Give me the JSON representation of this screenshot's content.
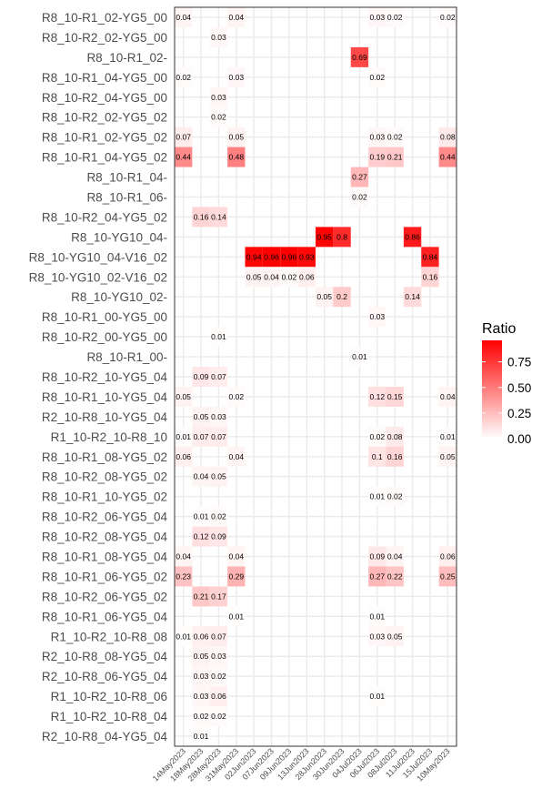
{
  "chart_data": {
    "type": "heatmap",
    "title": "",
    "xlabel": "",
    "ylabel": "",
    "x": [
      "14May2023",
      "18May2023",
      "28May2023",
      "31May2023",
      "02Jun2023",
      "07Jun2023",
      "09Jun2023",
      "13Jun2023",
      "28Jun2023",
      "30Jun2023",
      "04Jul2023",
      "06Jul2023",
      "08Jul2023",
      "11Jul2023",
      "15Jul2023",
      "10May2023"
    ],
    "y": [
      "R8_10-R1_02-YG5_00",
      "R8_10-R2_02-YG5_00",
      "R8_10-R1_02-",
      "R8_10-R1_04-YG5_00",
      "R8_10-R2_04-YG5_00",
      "R8_10-R2_02-YG5_02",
      "R8_10-R1_02-YG5_02",
      "R8_10-R1_04-YG5_02",
      "R8_10-R1_04-",
      "R8_10-R1_06-",
      "R8_10-R2_04-YG5_02",
      "R8_10-YG10_04-",
      "R8_10-YG10_04-V16_02",
      "R8_10-YG10_02-V16_02",
      "R8_10-YG10_02-",
      "R8_10-R1_00-YG5_00",
      "R8_10-R2_00-YG5_00",
      "R8_10-R1_00-",
      "R8_10-R2_10-YG5_04",
      "R8_10-R1_10-YG5_04",
      "R2_10-R8_10-YG5_04",
      "R1_10-R2_10-R8_10",
      "R8_10-R1_08-YG5_02",
      "R8_10-R2_08-YG5_02",
      "R8_10-R1_10-YG5_02",
      "R8_10-R2_06-YG5_04",
      "R8_10-R2_08-YG5_04",
      "R8_10-R1_08-YG5_04",
      "R8_10-R1_06-YG5_02",
      "R8_10-R2_06-YG5_02",
      "R8_10-R1_06-YG5_04",
      "R1_10-R2_10-R8_08",
      "R2_10-R8_08-YG5_04",
      "R2_10-R8_06-YG5_04",
      "R1_10-R2_10-R8_06",
      "R1_10-R2_10-R8_04",
      "R2_10-R8_04-YG5_04"
    ],
    "cells": [
      {
        "row": 0,
        "col": 0,
        "value": 0.04,
        "label": "0.04"
      },
      {
        "row": 0,
        "col": 3,
        "value": 0.04,
        "label": "0.04"
      },
      {
        "row": 0,
        "col": 11,
        "value": 0.03,
        "label": "0.03"
      },
      {
        "row": 0,
        "col": 12,
        "value": 0.02,
        "label": "0.02"
      },
      {
        "row": 0,
        "col": 15,
        "value": 0.02,
        "label": "0.02"
      },
      {
        "row": 1,
        "col": 2,
        "value": 0.03,
        "label": "0.03"
      },
      {
        "row": 2,
        "col": 10,
        "value": 0.69,
        "label": "0.69"
      },
      {
        "row": 3,
        "col": 0,
        "value": 0.02,
        "label": "0.02"
      },
      {
        "row": 3,
        "col": 3,
        "value": 0.03,
        "label": "0.03"
      },
      {
        "row": 3,
        "col": 11,
        "value": 0.02,
        "label": "0.02"
      },
      {
        "row": 4,
        "col": 2,
        "value": 0.03,
        "label": "0.03"
      },
      {
        "row": 5,
        "col": 2,
        "value": 0.02,
        "label": "0.02"
      },
      {
        "row": 6,
        "col": 0,
        "value": 0.07,
        "label": "0.07"
      },
      {
        "row": 6,
        "col": 3,
        "value": 0.05,
        "label": "0.05"
      },
      {
        "row": 6,
        "col": 11,
        "value": 0.03,
        "label": "0.03"
      },
      {
        "row": 6,
        "col": 12,
        "value": 0.02,
        "label": "0.02"
      },
      {
        "row": 6,
        "col": 15,
        "value": 0.08,
        "label": "0.08"
      },
      {
        "row": 7,
        "col": 0,
        "value": 0.44,
        "label": "0.44"
      },
      {
        "row": 7,
        "col": 3,
        "value": 0.48,
        "label": "0.48"
      },
      {
        "row": 7,
        "col": 11,
        "value": 0.19,
        "label": "0.19"
      },
      {
        "row": 7,
        "col": 12,
        "value": 0.21,
        "label": "0.21"
      },
      {
        "row": 7,
        "col": 15,
        "value": 0.44,
        "label": "0.44"
      },
      {
        "row": 8,
        "col": 10,
        "value": 0.27,
        "label": "0.27"
      },
      {
        "row": 9,
        "col": 10,
        "value": 0.02,
        "label": "0.02"
      },
      {
        "row": 10,
        "col": 1,
        "value": 0.16,
        "label": "0.16"
      },
      {
        "row": 10,
        "col": 2,
        "value": 0.14,
        "label": "0.14"
      },
      {
        "row": 11,
        "col": 8,
        "value": 0.95,
        "label": "0.95"
      },
      {
        "row": 11,
        "col": 9,
        "value": 0.8,
        "label": "0.8"
      },
      {
        "row": 11,
        "col": 13,
        "value": 0.86,
        "label": "0.86"
      },
      {
        "row": 12,
        "col": 4,
        "value": 0.94,
        "label": "0.94"
      },
      {
        "row": 12,
        "col": 5,
        "value": 0.96,
        "label": "0.96"
      },
      {
        "row": 12,
        "col": 6,
        "value": 0.96,
        "label": "0.96"
      },
      {
        "row": 12,
        "col": 7,
        "value": 0.93,
        "label": "0.93"
      },
      {
        "row": 12,
        "col": 14,
        "value": 0.84,
        "label": "0.84"
      },
      {
        "row": 13,
        "col": 4,
        "value": 0.05,
        "label": "0.05"
      },
      {
        "row": 13,
        "col": 5,
        "value": 0.04,
        "label": "0.04"
      },
      {
        "row": 13,
        "col": 6,
        "value": 0.02,
        "label": "0.02"
      },
      {
        "row": 13,
        "col": 7,
        "value": 0.06,
        "label": "0.06"
      },
      {
        "row": 13,
        "col": 14,
        "value": 0.16,
        "label": "0.16"
      },
      {
        "row": 14,
        "col": 8,
        "value": 0.05,
        "label": "0.05"
      },
      {
        "row": 14,
        "col": 9,
        "value": 0.2,
        "label": "0.2"
      },
      {
        "row": 14,
        "col": 13,
        "value": 0.14,
        "label": "0.14"
      },
      {
        "row": 15,
        "col": 11,
        "value": 0.03,
        "label": "0.03"
      },
      {
        "row": 16,
        "col": 2,
        "value": 0.01,
        "label": "0.01"
      },
      {
        "row": 17,
        "col": 10,
        "value": 0.01,
        "label": "0.01"
      },
      {
        "row": 18,
        "col": 1,
        "value": 0.09,
        "label": "0.09"
      },
      {
        "row": 18,
        "col": 2,
        "value": 0.07,
        "label": "0.07"
      },
      {
        "row": 19,
        "col": 0,
        "value": 0.05,
        "label": "0.05"
      },
      {
        "row": 19,
        "col": 3,
        "value": 0.02,
        "label": "0.02"
      },
      {
        "row": 19,
        "col": 11,
        "value": 0.12,
        "label": "0.12"
      },
      {
        "row": 19,
        "col": 12,
        "value": 0.15,
        "label": "0.15"
      },
      {
        "row": 19,
        "col": 15,
        "value": 0.04,
        "label": "0.04"
      },
      {
        "row": 20,
        "col": 1,
        "value": 0.05,
        "label": "0.05"
      },
      {
        "row": 20,
        "col": 2,
        "value": 0.03,
        "label": "0.03"
      },
      {
        "row": 21,
        "col": 0,
        "value": 0.01,
        "label": "0.01"
      },
      {
        "row": 21,
        "col": 1,
        "value": 0.07,
        "label": "0.07"
      },
      {
        "row": 21,
        "col": 2,
        "value": 0.07,
        "label": "0.07"
      },
      {
        "row": 21,
        "col": 11,
        "value": 0.02,
        "label": "0.02"
      },
      {
        "row": 21,
        "col": 12,
        "value": 0.08,
        "label": "0.08"
      },
      {
        "row": 21,
        "col": 15,
        "value": 0.01,
        "label": "0.01"
      },
      {
        "row": 22,
        "col": 0,
        "value": 0.06,
        "label": "0.06"
      },
      {
        "row": 22,
        "col": 3,
        "value": 0.04,
        "label": "0.04"
      },
      {
        "row": 22,
        "col": 11,
        "value": 0.1,
        "label": "0.1"
      },
      {
        "row": 22,
        "col": 12,
        "value": 0.16,
        "label": "0.16"
      },
      {
        "row": 22,
        "col": 15,
        "value": 0.05,
        "label": "0.05"
      },
      {
        "row": 23,
        "col": 1,
        "value": 0.04,
        "label": "0.04"
      },
      {
        "row": 23,
        "col": 2,
        "value": 0.05,
        "label": "0.05"
      },
      {
        "row": 24,
        "col": 11,
        "value": 0.01,
        "label": "0.01"
      },
      {
        "row": 24,
        "col": 12,
        "value": 0.02,
        "label": "0.02"
      },
      {
        "row": 25,
        "col": 1,
        "value": 0.01,
        "label": "0.01"
      },
      {
        "row": 25,
        "col": 2,
        "value": 0.02,
        "label": "0.02"
      },
      {
        "row": 26,
        "col": 1,
        "value": 0.12,
        "label": "0.12"
      },
      {
        "row": 26,
        "col": 2,
        "value": 0.09,
        "label": "0.09"
      },
      {
        "row": 27,
        "col": 0,
        "value": 0.04,
        "label": "0.04"
      },
      {
        "row": 27,
        "col": 3,
        "value": 0.04,
        "label": "0.04"
      },
      {
        "row": 27,
        "col": 11,
        "value": 0.09,
        "label": "0.09"
      },
      {
        "row": 27,
        "col": 12,
        "value": 0.04,
        "label": "0.04"
      },
      {
        "row": 27,
        "col": 15,
        "value": 0.06,
        "label": "0.06"
      },
      {
        "row": 28,
        "col": 0,
        "value": 0.23,
        "label": "0.23"
      },
      {
        "row": 28,
        "col": 3,
        "value": 0.29,
        "label": "0.29"
      },
      {
        "row": 28,
        "col": 11,
        "value": 0.27,
        "label": "0.27"
      },
      {
        "row": 28,
        "col": 12,
        "value": 0.22,
        "label": "0.22"
      },
      {
        "row": 28,
        "col": 15,
        "value": 0.25,
        "label": "0.25"
      },
      {
        "row": 29,
        "col": 1,
        "value": 0.21,
        "label": "0.21"
      },
      {
        "row": 29,
        "col": 2,
        "value": 0.17,
        "label": "0.17"
      },
      {
        "row": 30,
        "col": 3,
        "value": 0.01,
        "label": "0.01"
      },
      {
        "row": 30,
        "col": 11,
        "value": 0.01,
        "label": "0.01"
      },
      {
        "row": 31,
        "col": 0,
        "value": 0.01,
        "label": "0.01"
      },
      {
        "row": 31,
        "col": 1,
        "value": 0.06,
        "label": "0.06"
      },
      {
        "row": 31,
        "col": 2,
        "value": 0.07,
        "label": "0.07"
      },
      {
        "row": 31,
        "col": 11,
        "value": 0.03,
        "label": "0.03"
      },
      {
        "row": 31,
        "col": 12,
        "value": 0.05,
        "label": "0.05"
      },
      {
        "row": 32,
        "col": 1,
        "value": 0.05,
        "label": "0.05"
      },
      {
        "row": 32,
        "col": 2,
        "value": 0.03,
        "label": "0.03"
      },
      {
        "row": 33,
        "col": 1,
        "value": 0.03,
        "label": "0.03"
      },
      {
        "row": 33,
        "col": 2,
        "value": 0.02,
        "label": "0.02"
      },
      {
        "row": 34,
        "col": 1,
        "value": 0.03,
        "label": "0.03"
      },
      {
        "row": 34,
        "col": 2,
        "value": 0.06,
        "label": "0.06"
      },
      {
        "row": 34,
        "col": 11,
        "value": 0.01,
        "label": "0.01"
      },
      {
        "row": 35,
        "col": 1,
        "value": 0.02,
        "label": "0.02"
      },
      {
        "row": 35,
        "col": 2,
        "value": 0.02,
        "label": "0.02"
      },
      {
        "row": 36,
        "col": 1,
        "value": 0.01,
        "label": "0.01"
      }
    ],
    "legend": {
      "title": "Ratio",
      "ticks": [
        0.75,
        0.5,
        0.25,
        0.0
      ],
      "tick_labels": [
        "0.75",
        "0.50",
        "0.25",
        "0.00"
      ],
      "range": [
        0,
        0.96
      ],
      "placement": "right",
      "color_low": "#ffffff",
      "color_high": "#ff0000"
    },
    "grid": true
  }
}
